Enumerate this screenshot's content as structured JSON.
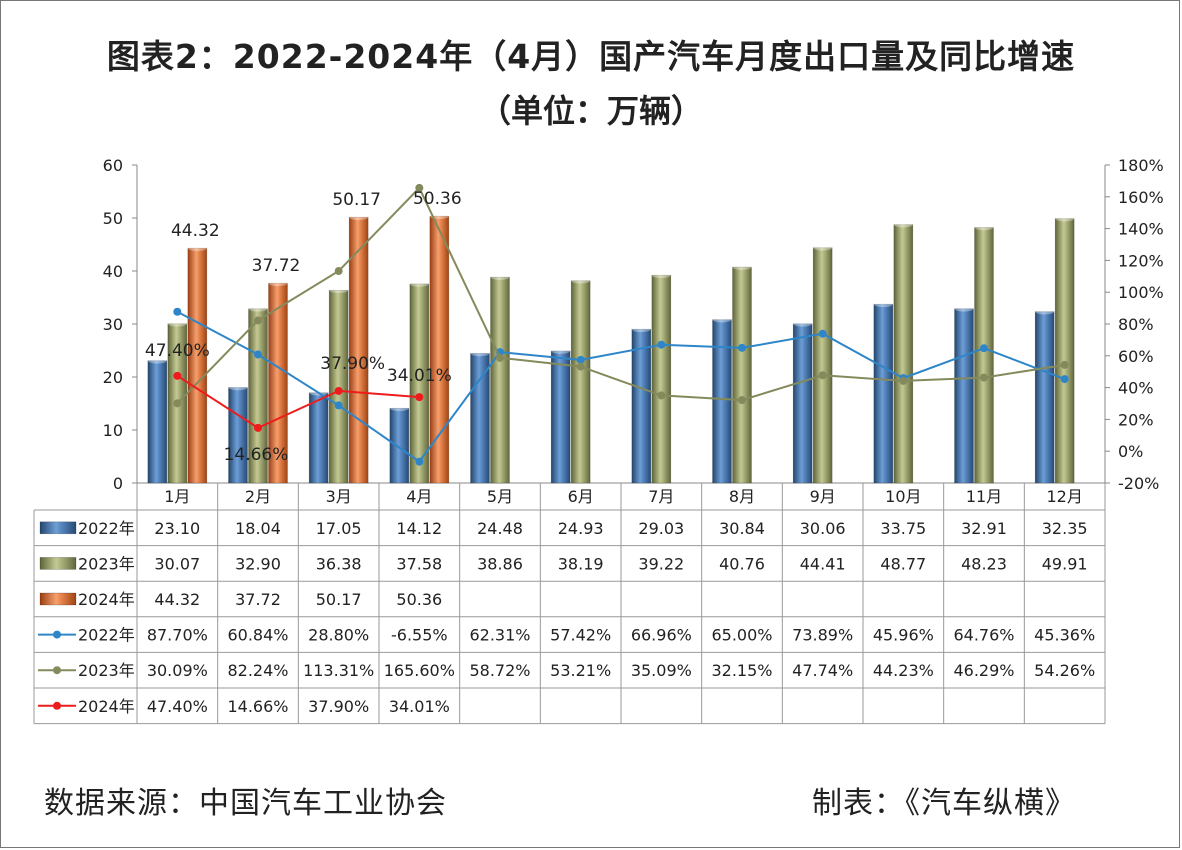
{
  "title": "图表2：2022-2024年（4月）国产汽车月度出口量及同比增速",
  "subtitle": "（单位：万辆）",
  "footer": {
    "source": "数据来源：中国汽车工业协会",
    "maker": "制表：《汽车纵横》"
  },
  "chart_data": {
    "type": "bar+line",
    "categories": [
      "1月",
      "2月",
      "3月",
      "4月",
      "5月",
      "6月",
      "7月",
      "8月",
      "9月",
      "10月",
      "11月",
      "12月"
    ],
    "y_left": {
      "min": 0,
      "max": 60,
      "step": 10,
      "ticks": [
        "0",
        "10",
        "20",
        "30",
        "40",
        "50",
        "60"
      ]
    },
    "y_right": {
      "min": -20,
      "max": 180,
      "step": 20,
      "ticks": [
        "-20%",
        "0%",
        "20%",
        "40%",
        "60%",
        "80%",
        "100%",
        "120%",
        "140%",
        "160%",
        "180%"
      ]
    },
    "bar_series": [
      {
        "name": "2022年",
        "color": "#4a7ebb",
        "values": [
          23.1,
          18.04,
          17.05,
          14.12,
          24.48,
          24.93,
          29.03,
          30.84,
          30.06,
          33.75,
          32.91,
          32.35
        ],
        "labels": [
          "23.10",
          "18.04",
          "17.05",
          "14.12",
          "24.48",
          "24.93",
          "29.03",
          "30.84",
          "30.06",
          "33.75",
          "32.91",
          "32.35"
        ]
      },
      {
        "name": "2023年",
        "color": "#9aa26a",
        "values": [
          30.07,
          32.9,
          36.38,
          37.58,
          38.86,
          38.19,
          39.22,
          40.76,
          44.41,
          48.77,
          48.23,
          49.91
        ],
        "labels": [
          "30.07",
          "32.90",
          "36.38",
          "37.58",
          "38.86",
          "38.19",
          "39.22",
          "40.76",
          "44.41",
          "48.77",
          "48.23",
          "49.91"
        ]
      },
      {
        "name": "2024年",
        "color": "#e0743a",
        "values": [
          44.32,
          37.72,
          50.17,
          50.36,
          null,
          null,
          null,
          null,
          null,
          null,
          null,
          null
        ],
        "labels": [
          "44.32",
          "37.72",
          "50.17",
          "50.36",
          "",
          "",
          "",
          "",
          "",
          "",
          "",
          ""
        ]
      }
    ],
    "line_series": [
      {
        "name": "2022年",
        "color": "#2e86c8",
        "values": [
          87.7,
          60.84,
          28.8,
          -6.55,
          62.31,
          57.42,
          66.96,
          65.0,
          73.89,
          45.96,
          64.76,
          45.36
        ],
        "labels": [
          "87.70%",
          "60.84%",
          "28.80%",
          "-6.55%",
          "62.31%",
          "57.42%",
          "66.96%",
          "65.00%",
          "73.89%",
          "45.96%",
          "64.76%",
          "45.36%"
        ]
      },
      {
        "name": "2023年",
        "color": "#848a5c",
        "values": [
          30.09,
          82.24,
          113.31,
          165.6,
          58.72,
          53.21,
          35.09,
          32.15,
          47.74,
          44.23,
          46.29,
          54.26
        ],
        "labels": [
          "30.09%",
          "82.24%",
          "113.31%",
          "165.60%",
          "58.72%",
          "53.21%",
          "35.09%",
          "32.15%",
          "47.74%",
          "44.23%",
          "46.29%",
          "54.26%"
        ]
      },
      {
        "name": "2024年",
        "color": "#ee1c1c",
        "values": [
          47.4,
          14.66,
          37.9,
          34.01,
          null,
          null,
          null,
          null,
          null,
          null,
          null,
          null
        ],
        "labels": [
          "47.40%",
          "14.66%",
          "37.90%",
          "34.01%",
          "",
          "",
          "",
          "",
          "",
          "",
          "",
          ""
        ]
      }
    ],
    "legend": "data-table"
  }
}
